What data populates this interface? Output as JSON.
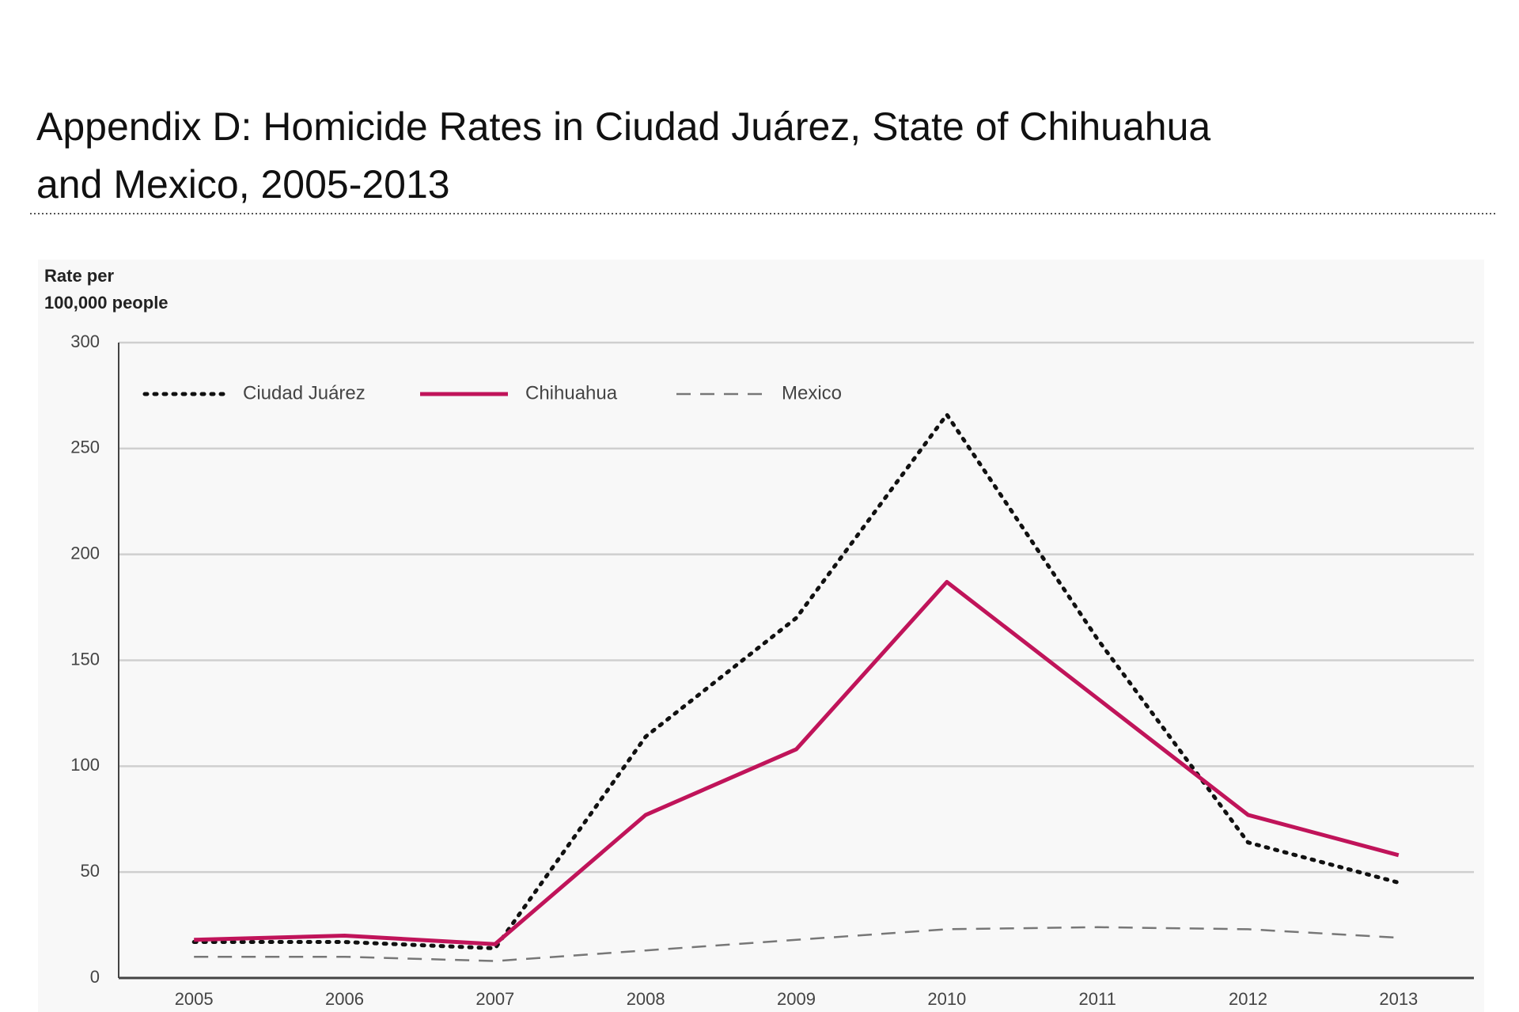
{
  "chart_data": {
    "type": "line",
    "title_lines": [
      "Appendix D: Homicide Rates in Ciudad Juárez, State of Chihuahua",
      "and Mexico, 2005-2013"
    ],
    "y_axis_title_lines": [
      "Rate per",
      "100,000 people"
    ],
    "categories": [
      "2005",
      "2006",
      "2007",
      "2008",
      "2009",
      "2010",
      "2011",
      "2012",
      "2013"
    ],
    "series": [
      {
        "name": "Ciudad Juárez",
        "color": "#111111",
        "dash": "dotted",
        "values": [
          17,
          17,
          14,
          114,
          170,
          266,
          160,
          64,
          45
        ]
      },
      {
        "name": "Chihuahua",
        "color": "#c0145a",
        "dash": "solid",
        "values": [
          18,
          20,
          16,
          77,
          108,
          187,
          132,
          77,
          58
        ]
      },
      {
        "name": "Mexico",
        "color": "#777777",
        "dash": "dashed",
        "values": [
          10,
          10,
          8,
          13,
          18,
          23,
          24,
          23,
          19
        ]
      }
    ],
    "ylim": [
      0,
      300
    ],
    "yticks": [
      0,
      50,
      100,
      150,
      200,
      250,
      300
    ],
    "grid": true
  }
}
